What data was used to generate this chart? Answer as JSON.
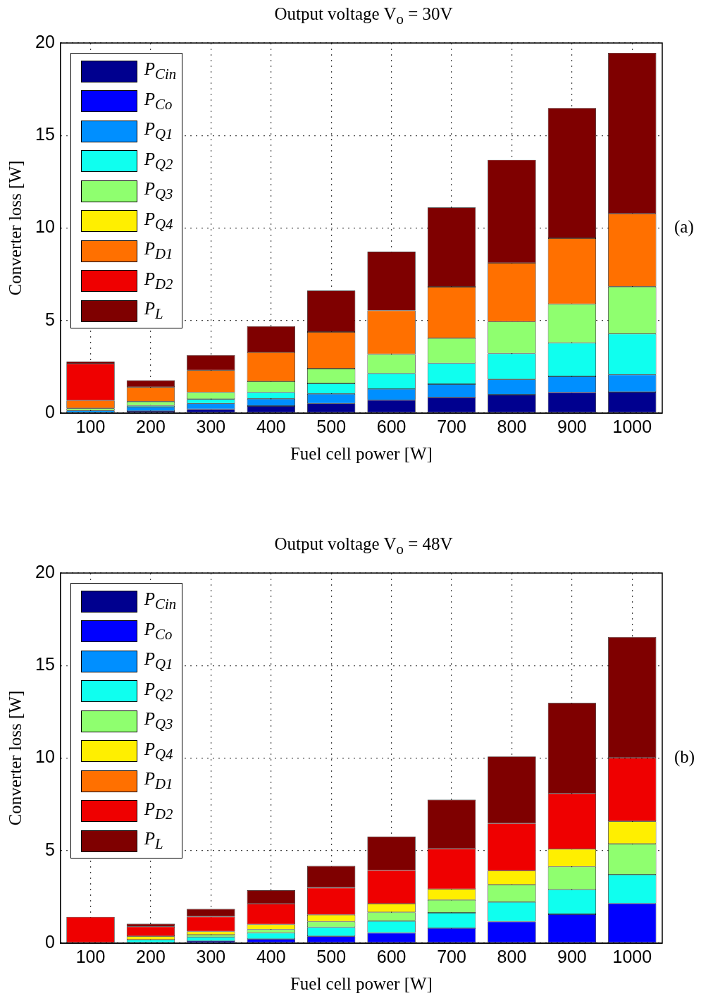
{
  "chart_data": [
    {
      "type": "bar",
      "title": "Output voltage V$_{o}$ = 30V",
      "xlabel": "Fuel cell power [W]",
      "ylabel": "Converter loss [W]",
      "categories": [
        "100",
        "200",
        "300",
        "400",
        "500",
        "600",
        "700",
        "800",
        "900",
        "1000"
      ],
      "series": [
        {
          "name": "P$_{Cin}$",
          "color": "#00008f",
          "values": [
            null,
            0.11,
            0.21,
            0.38,
            0.52,
            0.7,
            0.85,
            0.99,
            1.12,
            1.14
          ]
        },
        {
          "name": "P$_{Co}$",
          "color": "#0000ff",
          "values": [
            null,
            null,
            null,
            null,
            null,
            null,
            null,
            null,
            null,
            null
          ]
        },
        {
          "name": "P$_{Q1}$",
          "color": "#008fff",
          "values": [
            0.14,
            0.22,
            0.31,
            0.39,
            0.52,
            0.6,
            0.71,
            0.83,
            0.86,
            0.93
          ]
        },
        {
          "name": "P$_{Q2}$",
          "color": "#0fffef",
          "values": [
            null,
            0.07,
            0.23,
            0.35,
            0.56,
            0.84,
            1.13,
            1.4,
            1.81,
            2.21
          ]
        },
        {
          "name": "P$_{Q3}$",
          "color": "#8fff6f",
          "values": [
            0.12,
            0.22,
            0.37,
            0.59,
            0.8,
            1.04,
            1.36,
            1.72,
            2.1,
            2.55
          ]
        },
        {
          "name": "P$_{Q4}$",
          "color": "#ffef00",
          "values": [
            null,
            null,
            null,
            null,
            null,
            null,
            null,
            null,
            null,
            null
          ]
        },
        {
          "name": "P$_{D1}$",
          "color": "#ff7000",
          "values": [
            0.42,
            0.78,
            1.19,
            1.57,
            1.98,
            2.36,
            2.77,
            3.17,
            3.56,
            3.94
          ]
        },
        {
          "name": "P$_{D2}$",
          "color": "#ef0000",
          "values": [
            1.99,
            null,
            null,
            null,
            null,
            null,
            null,
            null,
            null,
            null
          ]
        },
        {
          "name": "P$_{L}$",
          "color": "#7f0000",
          "values": [
            0.11,
            0.37,
            0.82,
            1.41,
            2.24,
            3.18,
            4.29,
            5.58,
            7.04,
            8.7
          ]
        }
      ],
      "stacked": true,
      "ylim": [
        0,
        20
      ],
      "yticks": [
        0,
        5,
        10,
        15,
        20
      ],
      "grid": true,
      "legend": "top left",
      "annotations": [
        "(a)"
      ]
    },
    {
      "type": "bar",
      "title": "Output voltage V$_{o}$ = 48V",
      "xlabel": "Fuel cell power [W]",
      "ylabel": "Converter loss [W]",
      "categories": [
        "100",
        "200",
        "300",
        "400",
        "500",
        "600",
        "700",
        "800",
        "900",
        "1000"
      ],
      "series": [
        {
          "name": "P$_{Cin}$",
          "color": "#00008f",
          "values": [
            null,
            null,
            null,
            null,
            null,
            null,
            null,
            null,
            null,
            null
          ]
        },
        {
          "name": "P$_{Co}$",
          "color": "#0000ff",
          "values": [
            null,
            null,
            0.11,
            0.22,
            0.37,
            0.55,
            0.81,
            1.16,
            1.56,
            2.14
          ]
        },
        {
          "name": "P$_{Q1}$",
          "color": "#008fff",
          "values": [
            null,
            null,
            null,
            null,
            null,
            null,
            null,
            null,
            null,
            null
          ]
        },
        {
          "name": "P$_{Q2}$",
          "color": "#0fffef",
          "values": [
            null,
            0.18,
            0.22,
            0.33,
            0.49,
            0.64,
            0.83,
            1.06,
            1.33,
            1.56
          ]
        },
        {
          "name": "P$_{Q3}$",
          "color": "#8fff6f",
          "values": [
            null,
            null,
            0.12,
            0.19,
            0.3,
            0.48,
            0.69,
            0.93,
            1.24,
            1.66
          ]
        },
        {
          "name": "P$_{Q4}$",
          "color": "#ffef00",
          "values": [
            null,
            0.19,
            0.18,
            0.27,
            0.37,
            0.46,
            0.59,
            0.76,
            0.95,
            1.22
          ]
        },
        {
          "name": "P$_{D1}$",
          "color": "#ff7000",
          "values": [
            null,
            null,
            null,
            null,
            null,
            null,
            null,
            null,
            null,
            null
          ]
        },
        {
          "name": "P$_{D2}$",
          "color": "#ef0000",
          "values": [
            1.42,
            0.52,
            0.8,
            1.11,
            1.46,
            1.81,
            2.18,
            2.56,
            3.01,
            3.43
          ]
        },
        {
          "name": "P$_{L}$",
          "color": "#7f0000",
          "values": [
            null,
            0.16,
            0.42,
            0.74,
            1.18,
            1.82,
            2.65,
            3.62,
            4.89,
            6.53
          ]
        }
      ],
      "stacked": true,
      "ylim": [
        0,
        20
      ],
      "yticks": [
        0,
        5,
        10,
        15,
        20
      ],
      "grid": true,
      "legend": "top left",
      "annotations": [
        "(b)"
      ]
    }
  ]
}
